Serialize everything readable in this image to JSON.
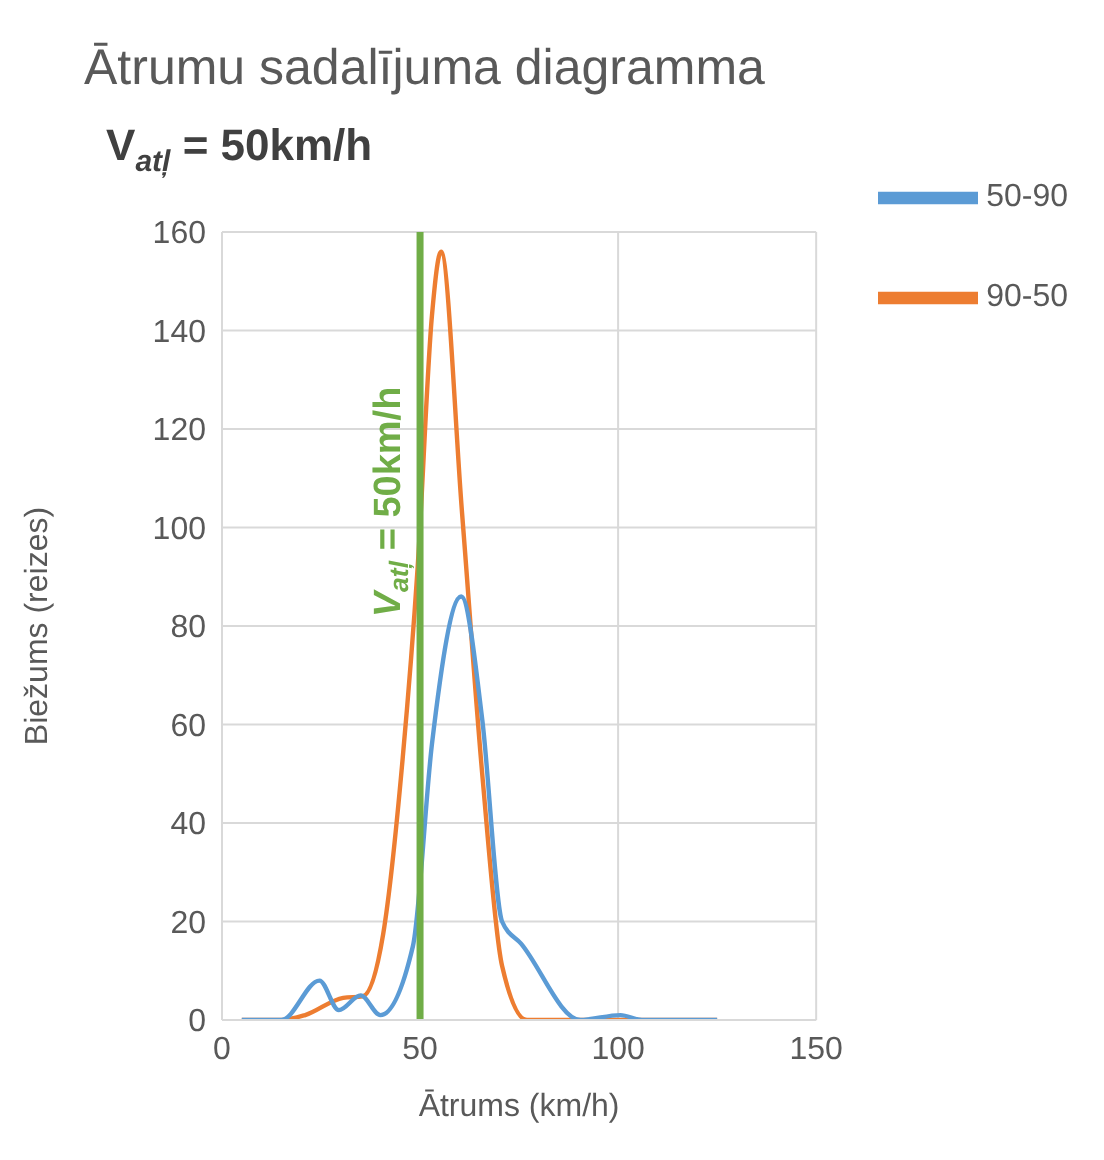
{
  "chart_data": {
    "type": "line",
    "title": "Ātrumu sadalījuma diagramma",
    "subtitle": "V$_{atļ}$ = 50km/h",
    "xlabel": "Ātrums (km/h)",
    "ylabel": "Biežums (reizes)",
    "xlim": [
      0,
      150
    ],
    "xticks": [
      0,
      50,
      100,
      150
    ],
    "ylim": [
      0,
      160
    ],
    "yticks": [
      0,
      20,
      40,
      60,
      80,
      100,
      120,
      140,
      160
    ],
    "grid": true,
    "legend": "top right",
    "marker": "none",
    "line_style": "solid",
    "series": [
      {
        "name": "90-50",
        "color": "#ed7d31",
        "x": [
          5,
          15,
          21,
          30.6,
          35.5,
          40.7,
          45.6,
          49.4,
          53,
          55.3,
          60.6,
          65.8,
          70.7,
          77,
          90,
          100,
          110,
          125
        ],
        "values": [
          0,
          0,
          1,
          4.5,
          4.8,
          17.5,
          53,
          92,
          143,
          156,
          103,
          49,
          11,
          0,
          0,
          0,
          0,
          0
        ]
      },
      {
        "name": "50-90",
        "color": "#5b9bd5",
        "x": [
          5,
          15,
          24.6,
          29.5,
          35,
          40,
          48.2,
          53,
          60.4,
          65.7,
          70.7,
          75.5,
          90.5,
          100.6,
          106,
          125
        ],
        "values": [
          0,
          0,
          8,
          2,
          5,
          1,
          15,
          56,
          86,
          61,
          20,
          15.5,
          0,
          1,
          0,
          0
        ]
      }
    ],
    "ref_lines": [
      {
        "axis": "x",
        "value": 50,
        "label": "V$_{atļ}$ = 50km/h",
        "color": "#70ad47",
        "line_style": "solid"
      }
    ]
  }
}
